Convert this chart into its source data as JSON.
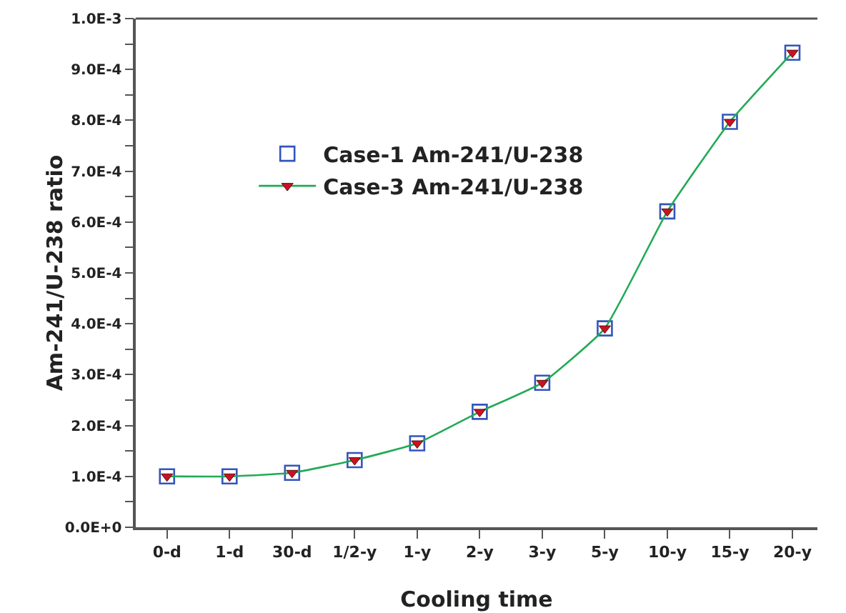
{
  "chart_data": {
    "type": "line",
    "xlabel": "Cooling time",
    "ylabel": "Am-241/U-238 ratio",
    "categories": [
      "0-d",
      "1-d",
      "30-d",
      "1/2-y",
      "1-y",
      "2-y",
      "3-y",
      "5-y",
      "10-y",
      "15-y",
      "20-y"
    ],
    "series": [
      {
        "name": "Case-1 Am-241/U-238",
        "type": "scatter",
        "marker": "square",
        "color": "#3355bb",
        "values": [
          0.0001,
          0.0001,
          0.000107,
          0.000132,
          0.000165,
          0.000227,
          0.000284,
          0.000391,
          0.000621,
          0.000797,
          0.000933
        ]
      },
      {
        "name": "Case-3 Am-241/U-238",
        "type": "line",
        "marker": "triangle",
        "color": "#22aa55",
        "values": [
          0.0001,
          0.0001,
          0.000107,
          0.000132,
          0.000165,
          0.000227,
          0.000284,
          0.000391,
          0.000621,
          0.000797,
          0.000933
        ]
      }
    ],
    "ylim": [
      0,
      0.001
    ],
    "yticks": [
      {
        "value": 0,
        "label": "0.0E+0"
      },
      {
        "value": 5e-05,
        "label": null
      },
      {
        "value": 0.0001,
        "label": "1.0E-4"
      },
      {
        "value": 0.00015,
        "label": null
      },
      {
        "value": 0.0002,
        "label": "2.0E-4"
      },
      {
        "value": 0.00025,
        "label": null
      },
      {
        "value": 0.0003,
        "label": "3.0E-4"
      },
      {
        "value": 0.00035,
        "label": null
      },
      {
        "value": 0.0004,
        "label": "4.0E-4"
      },
      {
        "value": 0.00045,
        "label": null
      },
      {
        "value": 0.0005,
        "label": "5.0E-4"
      },
      {
        "value": 0.00055,
        "label": null
      },
      {
        "value": 0.0006,
        "label": "6.0E-4"
      },
      {
        "value": 0.00065,
        "label": null
      },
      {
        "value": 0.0007,
        "label": "7.0E-4"
      },
      {
        "value": 0.00075,
        "label": null
      },
      {
        "value": 0.0008,
        "label": "8.0E-4"
      },
      {
        "value": 0.00085,
        "label": null
      },
      {
        "value": 0.0009,
        "label": "9.0E-4"
      },
      {
        "value": 0.00095,
        "label": null
      },
      {
        "value": 0.001,
        "label": "1.0E-3"
      }
    ],
    "grid": false,
    "legend": "top left",
    "line_style": "solid"
  }
}
